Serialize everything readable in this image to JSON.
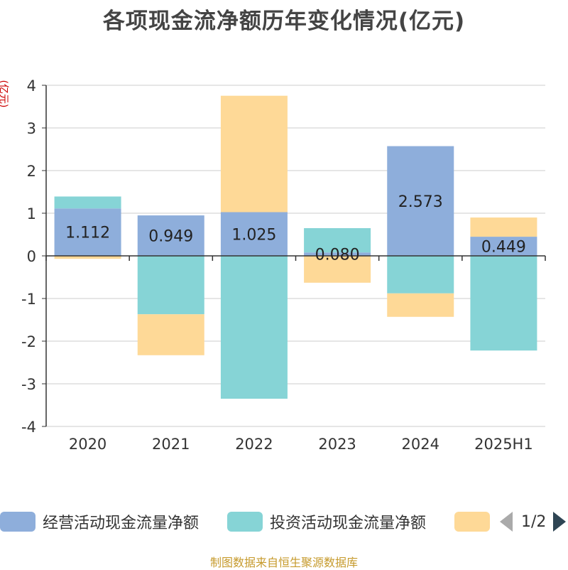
{
  "title": "各项现金流净额历年变化情况(亿元)",
  "unit_label": "(亿元)",
  "source": "制图数据来自恒生聚源数据库",
  "colors": {
    "operating": "#8eaedb",
    "investing": "#86d4d6",
    "financing": "#fed997",
    "axis": "#333333",
    "grid": "#cccccc",
    "unit_label": "#cc0000"
  },
  "legend": {
    "items": [
      {
        "label": "经营活动现金流量净额",
        "color": "#8eaedb"
      },
      {
        "label": "投资活动现金流量净额",
        "color": "#86d4d6"
      },
      {
        "label": "",
        "color": "#fed997"
      }
    ],
    "pager": "1/2"
  },
  "chart_data": {
    "type": "bar",
    "stacked": true,
    "categories": [
      "2020",
      "2021",
      "2022",
      "2023",
      "2024",
      "2025H1"
    ],
    "ylim": [
      -4,
      4
    ],
    "yticks": [
      "-4",
      "-3",
      "-2",
      "-1",
      "0",
      "1",
      "2",
      "3",
      "4"
    ],
    "series": [
      {
        "name": "经营活动现金流量净额",
        "color": "#8eaedb",
        "values": [
          1.112,
          0.949,
          1.025,
          0.08,
          2.573,
          0.449
        ],
        "labels": [
          "1.112",
          "0.949",
          "1.025",
          "0.080",
          "2.573",
          "0.449"
        ]
      },
      {
        "name": "投资活动现金流量净额",
        "color": "#86d4d6",
        "values": [
          0.28,
          -1.37,
          -3.35,
          0.57,
          -0.88,
          -2.22
        ]
      },
      {
        "color": "#fed997",
        "values": [
          -0.07,
          -0.96,
          2.73,
          -0.63,
          -0.55,
          0.45
        ]
      }
    ],
    "grid": true,
    "legend_position": "bottom"
  }
}
